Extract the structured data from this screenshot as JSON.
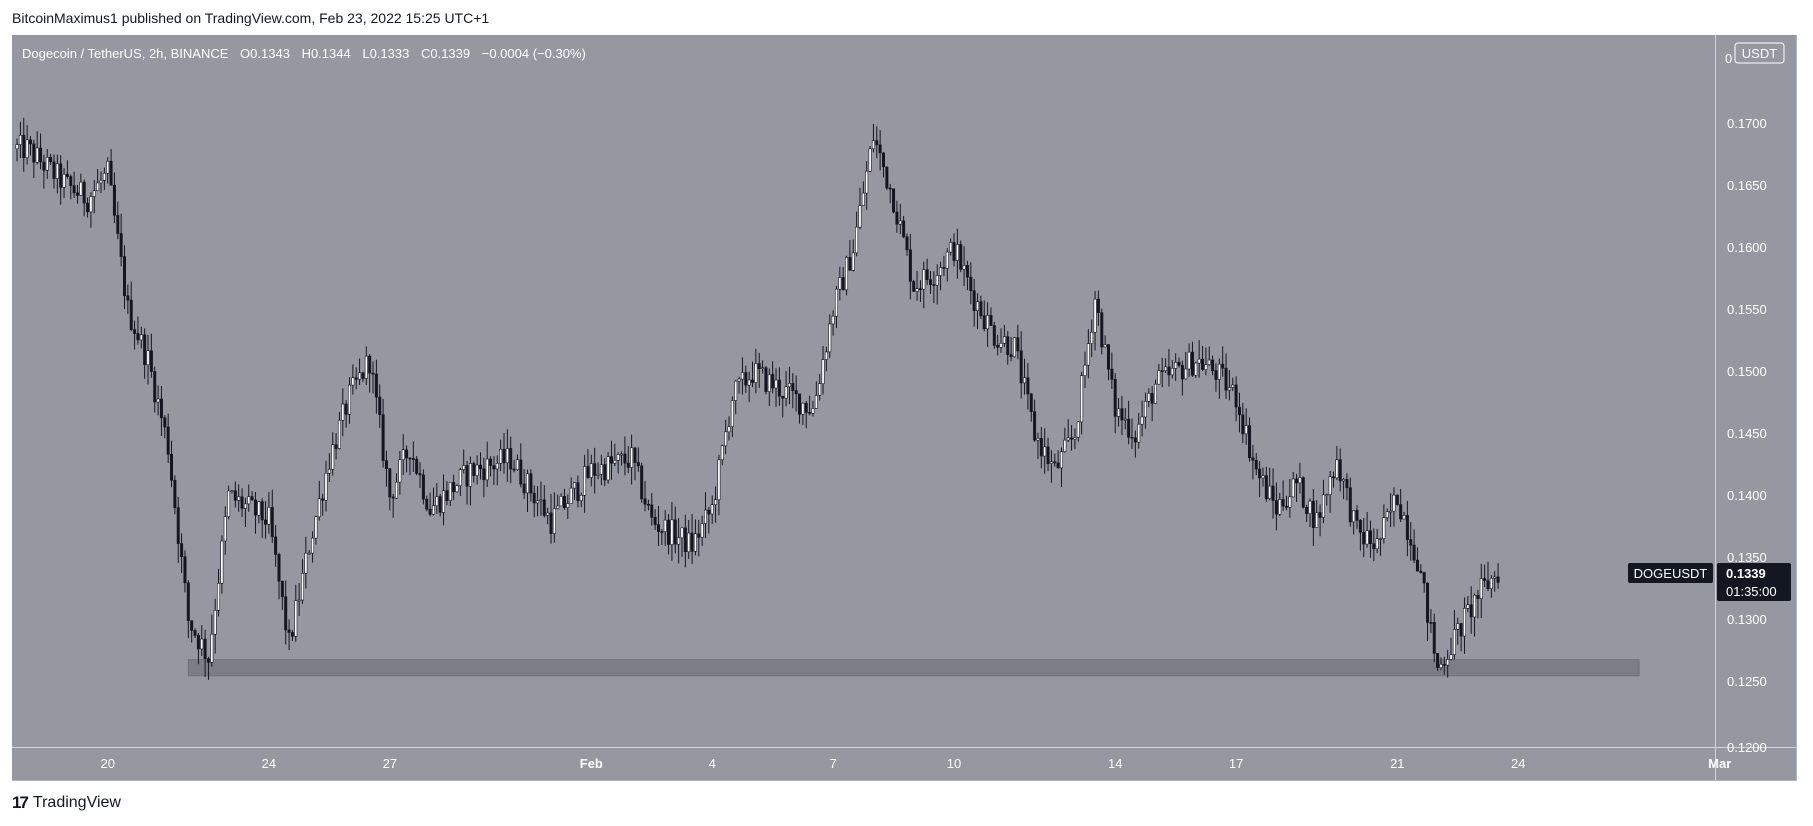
{
  "header": {
    "published_by": "BitcoinMaximus1 published on TradingView.com, Feb 23, 2022 15:25 UTC+1"
  },
  "legend": {
    "symbol": "Dogecoin / TetherUS, 2h, BINANCE",
    "o_label": "O",
    "o": "0.1343",
    "h_label": "H",
    "h": "0.1344",
    "l_label": "L",
    "l": "0.1333",
    "c_label": "C",
    "c": "0.1339",
    "change": "−0.0004 (−0.30%)"
  },
  "price_axis": {
    "currency": "USDT",
    "ticks": [
      "0.1700",
      "0.1650",
      "0.1600",
      "0.1550",
      "0.1500",
      "0.1450",
      "0.1400",
      "0.1350",
      "0.1300",
      "0.1250"
    ],
    "top_partial": "0",
    "bottom_partial": "0.1200"
  },
  "time_axis": {
    "ticks": [
      "20",
      "24",
      "27",
      "Feb",
      "4",
      "7",
      "10",
      "14",
      "17",
      "21",
      "24",
      "Mar"
    ]
  },
  "last_price": {
    "symbol": "DOGEUSDT",
    "price": "0.1339",
    "countdown": "01:35:00"
  },
  "footer": {
    "logo_mark": "17",
    "brand": "TradingView"
  },
  "colors": {
    "background": "#9598a1",
    "candle": "#131722",
    "support_zone": "#7b7e87",
    "tag": "#131722"
  },
  "chart_data": {
    "type": "candlestick",
    "title": "Dogecoin / TetherUS, 2h, BINANCE",
    "interval": "2h",
    "ylim": [
      0.12,
      0.176
    ],
    "grid": false,
    "support_zone": {
      "from": 0.1255,
      "to": 0.1268,
      "x_start": "2022-01-22",
      "x_end": "2022-02-27"
    },
    "price_path": [
      [
        "2022-01-18",
        0.168
      ],
      [
        "2022-01-19",
        0.165
      ],
      [
        "2022-01-19T12",
        0.164
      ],
      [
        "2022-01-20",
        0.166
      ],
      [
        "2022-01-20T12",
        0.155
      ],
      [
        "2022-01-21",
        0.151
      ],
      [
        "2022-01-21T12",
        0.144
      ],
      [
        "2022-01-22",
        0.13
      ],
      [
        "2022-01-22T12",
        0.127
      ],
      [
        "2022-01-23",
        0.14
      ],
      [
        "2022-01-23T12",
        0.139
      ],
      [
        "2022-01-24",
        0.138
      ],
      [
        "2022-01-24T12",
        0.128
      ],
      [
        "2022-01-25",
        0.136
      ],
      [
        "2022-01-25T12",
        0.143
      ],
      [
        "2022-01-26",
        0.148
      ],
      [
        "2022-01-26T12",
        0.151
      ],
      [
        "2022-01-27",
        0.14
      ],
      [
        "2022-01-27T12",
        0.144
      ],
      [
        "2022-01-28",
        0.139
      ],
      [
        "2022-01-29",
        0.142
      ],
      [
        "2022-01-30",
        0.143
      ],
      [
        "2022-01-31",
        0.138
      ],
      [
        "2022-02-01",
        0.142
      ],
      [
        "2022-02-02",
        0.143
      ],
      [
        "2022-02-02T12",
        0.138
      ],
      [
        "2022-02-03",
        0.137
      ],
      [
        "2022-02-03T12",
        0.136
      ],
      [
        "2022-02-04",
        0.139
      ],
      [
        "2022-02-04T12",
        0.148
      ],
      [
        "2022-02-05",
        0.15
      ],
      [
        "2022-02-06",
        0.148
      ],
      [
        "2022-02-06T12",
        0.147
      ],
      [
        "2022-02-07",
        0.155
      ],
      [
        "2022-02-07T12",
        0.16
      ],
      [
        "2022-02-08",
        0.169
      ],
      [
        "2022-02-08T12",
        0.164
      ],
      [
        "2022-02-09",
        0.157
      ],
      [
        "2022-02-09T12",
        0.158
      ],
      [
        "2022-02-10",
        0.16
      ],
      [
        "2022-02-10T12",
        0.156
      ],
      [
        "2022-02-11",
        0.153
      ],
      [
        "2022-02-11T12",
        0.152
      ],
      [
        "2022-02-12",
        0.145
      ],
      [
        "2022-02-12T12",
        0.142
      ],
      [
        "2022-02-13",
        0.145
      ],
      [
        "2022-02-13T12",
        0.156
      ],
      [
        "2022-02-14",
        0.147
      ],
      [
        "2022-02-14T12",
        0.145
      ],
      [
        "2022-02-15",
        0.149
      ],
      [
        "2022-02-15T12",
        0.15
      ],
      [
        "2022-02-16",
        0.151
      ],
      [
        "2022-02-16T12",
        0.15
      ],
      [
        "2022-02-17",
        0.148
      ],
      [
        "2022-02-17T12",
        0.142
      ],
      [
        "2022-02-18",
        0.139
      ],
      [
        "2022-02-18T12",
        0.141
      ],
      [
        "2022-02-19",
        0.138
      ],
      [
        "2022-02-19T12",
        0.143
      ],
      [
        "2022-02-20",
        0.137
      ],
      [
        "2022-02-20T12",
        0.136
      ],
      [
        "2022-02-21",
        0.14
      ],
      [
        "2022-02-21T12",
        0.135
      ],
      [
        "2022-02-22",
        0.126
      ],
      [
        "2022-02-22T12",
        0.129
      ],
      [
        "2022-02-23",
        0.132
      ],
      [
        "2022-02-23T12",
        0.1339
      ]
    ]
  }
}
